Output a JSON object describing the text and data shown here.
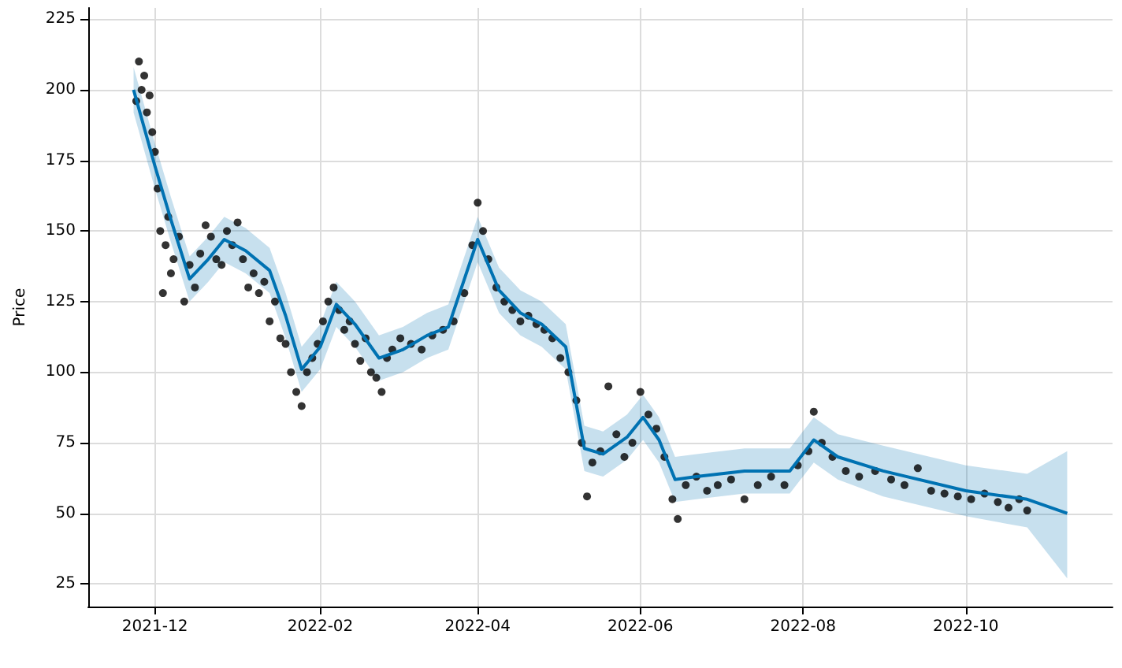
{
  "chart_data": {
    "type": "scatter",
    "ylabel": "Price",
    "xlim": [
      "2021-11-06",
      "2022-11-25"
    ],
    "ylim": [
      17,
      229
    ],
    "xticks": [
      {
        "value": "2021-12-01",
        "label": "2021-12"
      },
      {
        "value": "2022-02-01",
        "label": "2022-02"
      },
      {
        "value": "2022-04-01",
        "label": "2022-04"
      },
      {
        "value": "2022-06-01",
        "label": "2022-06"
      },
      {
        "value": "2022-08-01",
        "label": "2022-08"
      },
      {
        "value": "2022-10-01",
        "label": "2022-10"
      }
    ],
    "yticks": [
      25,
      50,
      75,
      100,
      125,
      150,
      175,
      200,
      225
    ],
    "grid": true,
    "series": [
      {
        "color": "#000000",
        "marker": "circle",
        "x": [
          "2021-11-24",
          "2021-11-25",
          "2021-11-26",
          "2021-11-27",
          "2021-11-28",
          "2021-11-29",
          "2021-11-30",
          "2021-12-01",
          "2021-12-02",
          "2021-12-03",
          "2021-12-04",
          "2021-12-05",
          "2021-12-06",
          "2021-12-07",
          "2021-12-08",
          "2021-12-10",
          "2021-12-12",
          "2021-12-14",
          "2021-12-16",
          "2021-12-18",
          "2021-12-20",
          "2021-12-22",
          "2021-12-24",
          "2021-12-26",
          "2021-12-28",
          "2021-12-30",
          "2022-01-01",
          "2022-01-03",
          "2022-01-05",
          "2022-01-07",
          "2022-01-09",
          "2022-01-11",
          "2022-01-13",
          "2022-01-15",
          "2022-01-17",
          "2022-01-19",
          "2022-01-21",
          "2022-01-23",
          "2022-01-25",
          "2022-01-27",
          "2022-01-29",
          "2022-01-31",
          "2022-02-02",
          "2022-02-04",
          "2022-02-06",
          "2022-02-08",
          "2022-02-10",
          "2022-02-12",
          "2022-02-14",
          "2022-02-16",
          "2022-02-18",
          "2022-02-20",
          "2022-02-22",
          "2022-02-24",
          "2022-02-26",
          "2022-02-28",
          "2022-03-03",
          "2022-03-07",
          "2022-03-11",
          "2022-03-15",
          "2022-03-19",
          "2022-03-23",
          "2022-03-27",
          "2022-03-30",
          "2022-04-01",
          "2022-04-03",
          "2022-04-05",
          "2022-04-08",
          "2022-04-11",
          "2022-04-14",
          "2022-04-17",
          "2022-04-20",
          "2022-04-23",
          "2022-04-26",
          "2022-04-29",
          "2022-05-02",
          "2022-05-05",
          "2022-05-08",
          "2022-05-10",
          "2022-05-12",
          "2022-05-14",
          "2022-05-17",
          "2022-05-20",
          "2022-05-23",
          "2022-05-26",
          "2022-05-29",
          "2022-06-01",
          "2022-06-04",
          "2022-06-07",
          "2022-06-10",
          "2022-06-13",
          "2022-06-15",
          "2022-06-18",
          "2022-06-22",
          "2022-06-26",
          "2022-06-30",
          "2022-07-05",
          "2022-07-10",
          "2022-07-15",
          "2022-07-20",
          "2022-07-25",
          "2022-07-30",
          "2022-08-03",
          "2022-08-05",
          "2022-08-08",
          "2022-08-12",
          "2022-08-17",
          "2022-08-22",
          "2022-08-28",
          "2022-09-03",
          "2022-09-08",
          "2022-09-13",
          "2022-09-18",
          "2022-09-23",
          "2022-09-28",
          "2022-10-03",
          "2022-10-08",
          "2022-10-13",
          "2022-10-17",
          "2022-10-21",
          "2022-10-24"
        ],
        "values": [
          196,
          210,
          200,
          205,
          192,
          198,
          185,
          178,
          165,
          150,
          128,
          145,
          155,
          135,
          140,
          148,
          125,
          138,
          130,
          142,
          152,
          148,
          140,
          138,
          150,
          145,
          153,
          140,
          130,
          135,
          128,
          132,
          118,
          125,
          112,
          110,
          100,
          93,
          88,
          100,
          105,
          110,
          118,
          125,
          130,
          122,
          115,
          118,
          110,
          104,
          112,
          100,
          98,
          93,
          105,
          108,
          112,
          110,
          108,
          113,
          115,
          118,
          128,
          145,
          160,
          150,
          140,
          130,
          125,
          122,
          118,
          120,
          117,
          115,
          112,
          105,
          100,
          90,
          75,
          56,
          68,
          72,
          95,
          78,
          70,
          75,
          93,
          85,
          80,
          70,
          55,
          48,
          60,
          63,
          58,
          60,
          62,
          55,
          60,
          63,
          60,
          67,
          72,
          86,
          75,
          70,
          65,
          63,
          65,
          62,
          60,
          66,
          58,
          57,
          56,
          55,
          57,
          54,
          52,
          55,
          51
        ]
      },
      {
        "type": "line",
        "color": "#0072b2",
        "marker": "none",
        "x": [
          "2021-11-23",
          "2021-12-01",
          "2021-12-07",
          "2021-12-14",
          "2021-12-21",
          "2021-12-27",
          "2022-01-04",
          "2022-01-13",
          "2022-01-19",
          "2022-01-25",
          "2022-02-01",
          "2022-02-07",
          "2022-02-14",
          "2022-02-23",
          "2022-03-04",
          "2022-03-13",
          "2022-03-21",
          "2022-04-01",
          "2022-04-09",
          "2022-04-17",
          "2022-04-25",
          "2022-05-04",
          "2022-05-11",
          "2022-05-18",
          "2022-05-27",
          "2022-06-02",
          "2022-06-08",
          "2022-06-14",
          "2022-06-22",
          "2022-07-10",
          "2022-07-27",
          "2022-08-05",
          "2022-08-14",
          "2022-08-31",
          "2022-10-01",
          "2022-10-24",
          "2022-11-08"
        ],
        "values": [
          200,
          173,
          154,
          133,
          140,
          147,
          143,
          136,
          120,
          101,
          109,
          124,
          117,
          105,
          108,
          113,
          116,
          147,
          129,
          121,
          117,
          109,
          73,
          71,
          77,
          84,
          76,
          62,
          63,
          65,
          65,
          76,
          70,
          65,
          58,
          55,
          50
        ],
        "lower": [
          192,
          165,
          146,
          125,
          132,
          139,
          135,
          128,
          112,
          93,
          101,
          116,
          109,
          97,
          100,
          105,
          108,
          139,
          121,
          113,
          109,
          101,
          65,
          63,
          69,
          76,
          68,
          54,
          55,
          57,
          57,
          68,
          62,
          56,
          49,
          45,
          27
        ],
        "upper": [
          208,
          181,
          162,
          141,
          148,
          155,
          151,
          144,
          128,
          109,
          117,
          132,
          125,
          113,
          116,
          121,
          124,
          155,
          137,
          129,
          125,
          117,
          81,
          79,
          85,
          92,
          84,
          70,
          71,
          73,
          73,
          84,
          78,
          74,
          67,
          64,
          72
        ]
      }
    ]
  }
}
